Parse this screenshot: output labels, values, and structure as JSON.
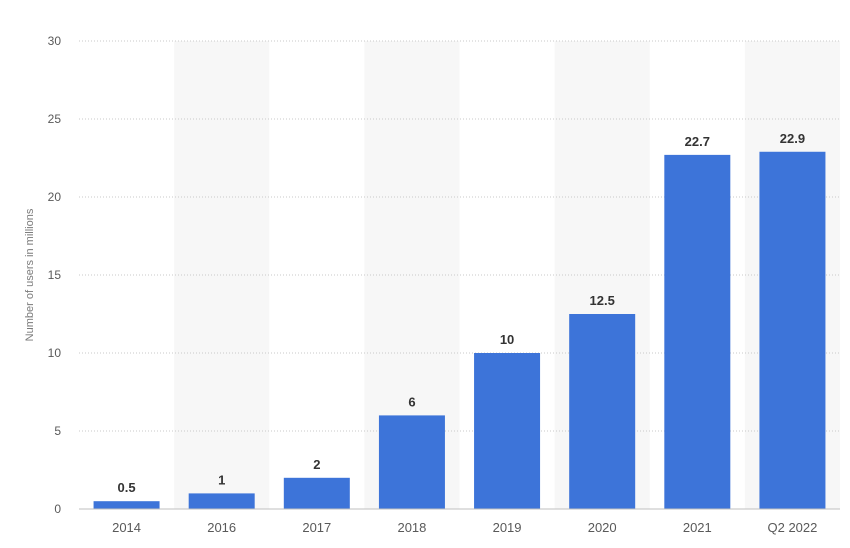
{
  "chart_data": {
    "type": "bar",
    "categories": [
      "2014",
      "2016",
      "2017",
      "2018",
      "2019",
      "2020",
      "2021",
      "Q2 2022"
    ],
    "values": [
      0.5,
      1,
      2,
      6,
      10,
      12.5,
      22.7,
      22.9
    ],
    "data_labels": [
      "0.5",
      "1",
      "2",
      "6",
      "10",
      "12.5",
      "22.7",
      "22.9"
    ],
    "title": "",
    "xlabel": "",
    "ylabel": "Number of users in millions",
    "ylim": [
      0,
      30
    ],
    "yticks": [
      0,
      5,
      10,
      15,
      20,
      25,
      30
    ],
    "grid": true,
    "bar_color": "#3d74d9",
    "band_color": "#f7f7f7",
    "grid_color": "#c8c8c8"
  }
}
